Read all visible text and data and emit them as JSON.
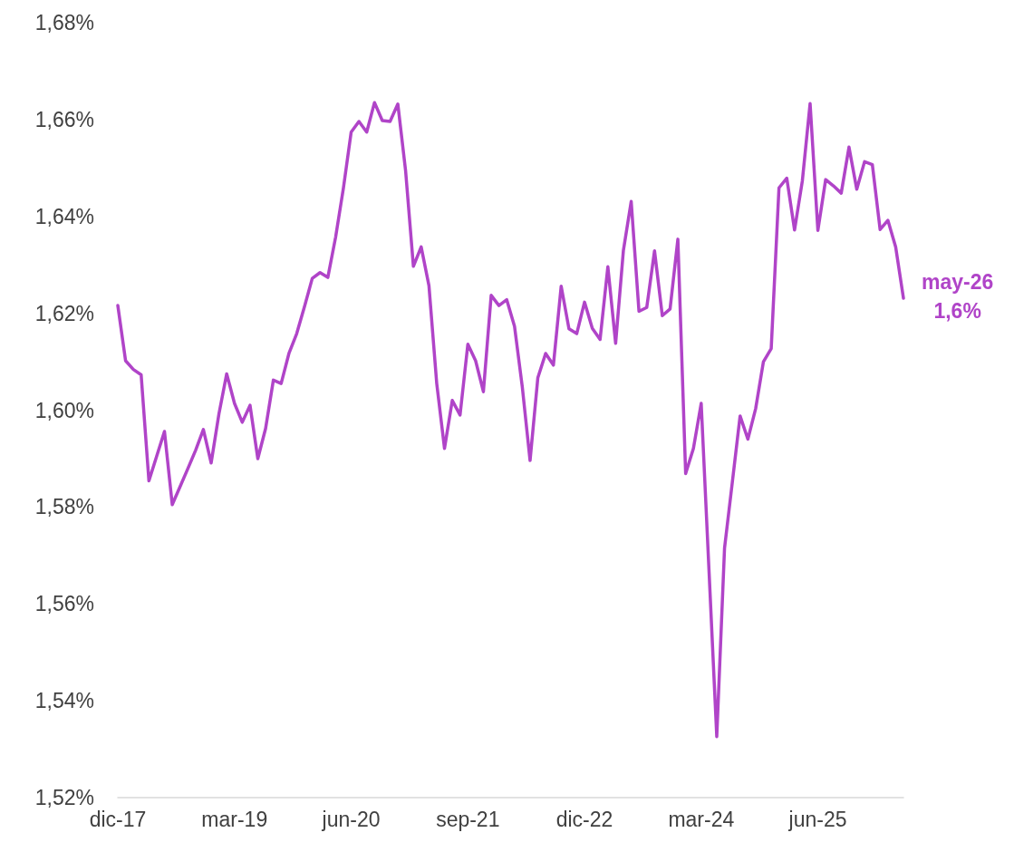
{
  "chart_data": {
    "type": "line",
    "categories": [
      "dic-17",
      null,
      null,
      null,
      null,
      null,
      null,
      null,
      null,
      null,
      null,
      null,
      null,
      null,
      null,
      "mar-19",
      null,
      null,
      null,
      null,
      null,
      null,
      null,
      null,
      null,
      null,
      null,
      null,
      null,
      null,
      "jun-20",
      null,
      null,
      null,
      null,
      null,
      null,
      null,
      null,
      null,
      null,
      null,
      null,
      null,
      null,
      "sep-21",
      null,
      null,
      null,
      null,
      null,
      null,
      null,
      null,
      null,
      null,
      null,
      null,
      null,
      null,
      "dic-22",
      null,
      null,
      null,
      null,
      null,
      null,
      null,
      null,
      null,
      null,
      null,
      null,
      null,
      null,
      "mar-24",
      null,
      null,
      null,
      null,
      null,
      null,
      null,
      null,
      null,
      null,
      null,
      null,
      null,
      null,
      "jun-25",
      null,
      null,
      null,
      null,
      null,
      null,
      null,
      null,
      null,
      null,
      null
    ],
    "series": [
      {
        "color": "#b044c8",
        "values": [
          1.6216,
          1.6102,
          1.6084,
          1.6073,
          1.5854,
          1.5905,
          1.5956,
          1.5805,
          1.5842,
          1.5879,
          1.5917,
          1.596,
          1.5891,
          1.5992,
          1.6075,
          1.6014,
          1.5975,
          1.601,
          1.59,
          1.5962,
          1.6062,
          1.6055,
          1.6117,
          1.6158,
          1.6214,
          1.6272,
          1.6284,
          1.6274,
          1.6357,
          1.6458,
          1.6574,
          1.6596,
          1.6574,
          1.6635,
          1.6598,
          1.6596,
          1.6632,
          1.6494,
          1.6297,
          1.6337,
          1.6257,
          1.6055,
          1.5921,
          1.602,
          1.599,
          1.6136,
          1.6102,
          1.6038,
          1.6237,
          1.6216,
          1.6228,
          1.6173,
          1.6048,
          1.5896,
          1.6067,
          1.6117,
          1.6093,
          1.6256,
          1.6168,
          1.6158,
          1.6223,
          1.6169,
          1.6146,
          1.6296,
          1.6138,
          1.633,
          1.6431,
          1.6204,
          1.6212,
          1.6329,
          1.6195,
          1.6209,
          1.6353,
          1.5869,
          1.5921,
          1.6014,
          1.567,
          1.5326,
          1.5715,
          1.5851,
          1.5988,
          1.594,
          1.6003,
          1.61,
          1.6127,
          1.6459,
          1.6479,
          1.6372,
          1.6473,
          1.6633,
          1.6371,
          1.6476,
          1.6463,
          1.6448,
          1.6543,
          1.6456,
          1.6513,
          1.6507,
          1.6373,
          1.6392,
          1.6337,
          1.6231
        ]
      }
    ],
    "ylim": [
      1.52,
      1.68
    ],
    "yticks": [
      {
        "value": 1.52,
        "label": "1,52%"
      },
      {
        "value": 1.54,
        "label": "1,54%"
      },
      {
        "value": 1.56,
        "label": "1,56%"
      },
      {
        "value": 1.58,
        "label": "1,58%"
      },
      {
        "value": 1.6,
        "label": "1,60%"
      },
      {
        "value": 1.62,
        "label": "1,62%"
      },
      {
        "value": 1.64,
        "label": "1,64%"
      },
      {
        "value": 1.66,
        "label": "1,66%"
      },
      {
        "value": 1.68,
        "label": "1,68%"
      }
    ],
    "annotations": [
      "may-26\n1,6%"
    ],
    "grid": false,
    "marker": "none",
    "line_style": "solid"
  }
}
